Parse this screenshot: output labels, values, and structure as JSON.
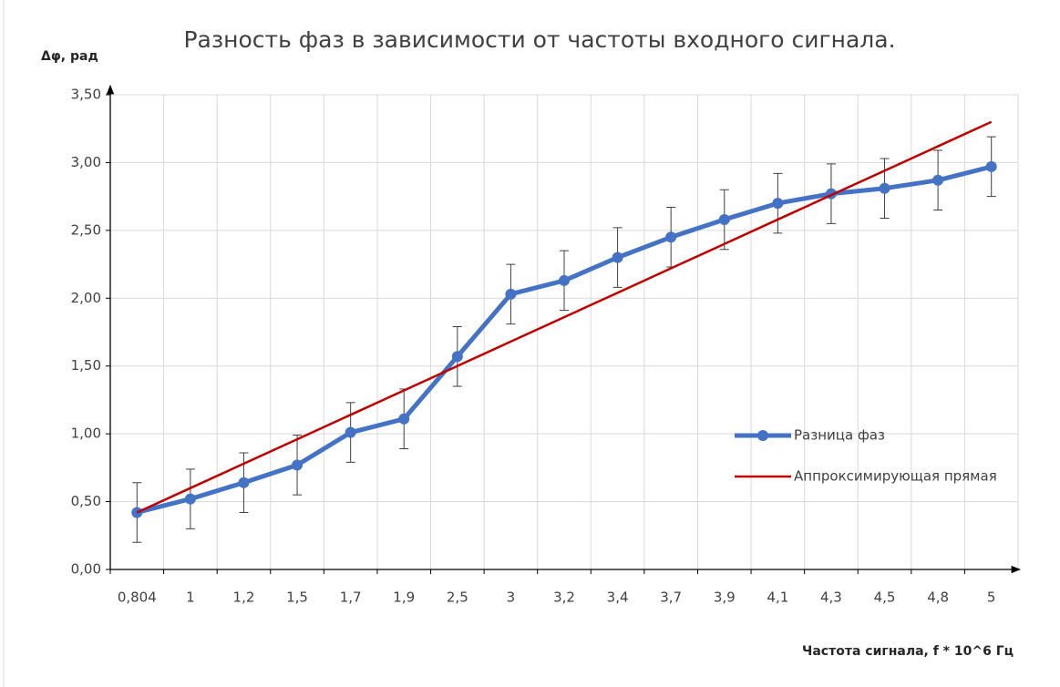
{
  "chart_data": {
    "type": "line",
    "title": "Разность фаз в зависимости от частоты входного сигнала.",
    "y_label": "Δφ, рад",
    "x_label": "Частота сигнала,  f * 10^6 Гц",
    "categories": [
      "0,804",
      "1",
      "1,2",
      "1,5",
      "1,7",
      "1,9",
      "2,5",
      "3",
      "3,2",
      "3,4",
      "3,7",
      "3,9",
      "4,1",
      "4,3",
      "4,5",
      "4,8",
      "5"
    ],
    "series": [
      {
        "name": "Разница фаз",
        "color": "#4472c4",
        "markers": true,
        "values": [
          0.42,
          0.52,
          0.64,
          0.77,
          1.01,
          1.11,
          1.57,
          2.03,
          2.13,
          2.3,
          2.45,
          2.58,
          2.7,
          2.77,
          2.81,
          2.87,
          2.97
        ],
        "errors": [
          0.22,
          0.22,
          0.22,
          0.22,
          0.22,
          0.22,
          0.22,
          0.22,
          0.22,
          0.22,
          0.22,
          0.22,
          0.22,
          0.22,
          0.22,
          0.22,
          0.22
        ]
      },
      {
        "name": "Аппроксимирующая прямая",
        "color": "#c00000",
        "markers": false,
        "values": [
          0.42,
          0.6,
          0.78,
          0.96,
          1.14,
          1.32,
          1.5,
          1.68,
          1.86,
          2.04,
          2.22,
          2.4,
          2.58,
          2.76,
          2.94,
          3.12,
          3.3
        ]
      }
    ],
    "ylim": [
      0,
      3.5
    ],
    "yticks": [
      {
        "value": 0,
        "label": "0,00"
      },
      {
        "value": 0.5,
        "label": "0,50"
      },
      {
        "value": 1,
        "label": "1,00"
      },
      {
        "value": 1.5,
        "label": "1,50"
      },
      {
        "value": 2,
        "label": "2,00"
      },
      {
        "value": 2.5,
        "label": "2,50"
      },
      {
        "value": 3,
        "label": "3,00"
      },
      {
        "value": 3.5,
        "label": "3,50"
      }
    ],
    "grid": true,
    "legend": "right"
  }
}
